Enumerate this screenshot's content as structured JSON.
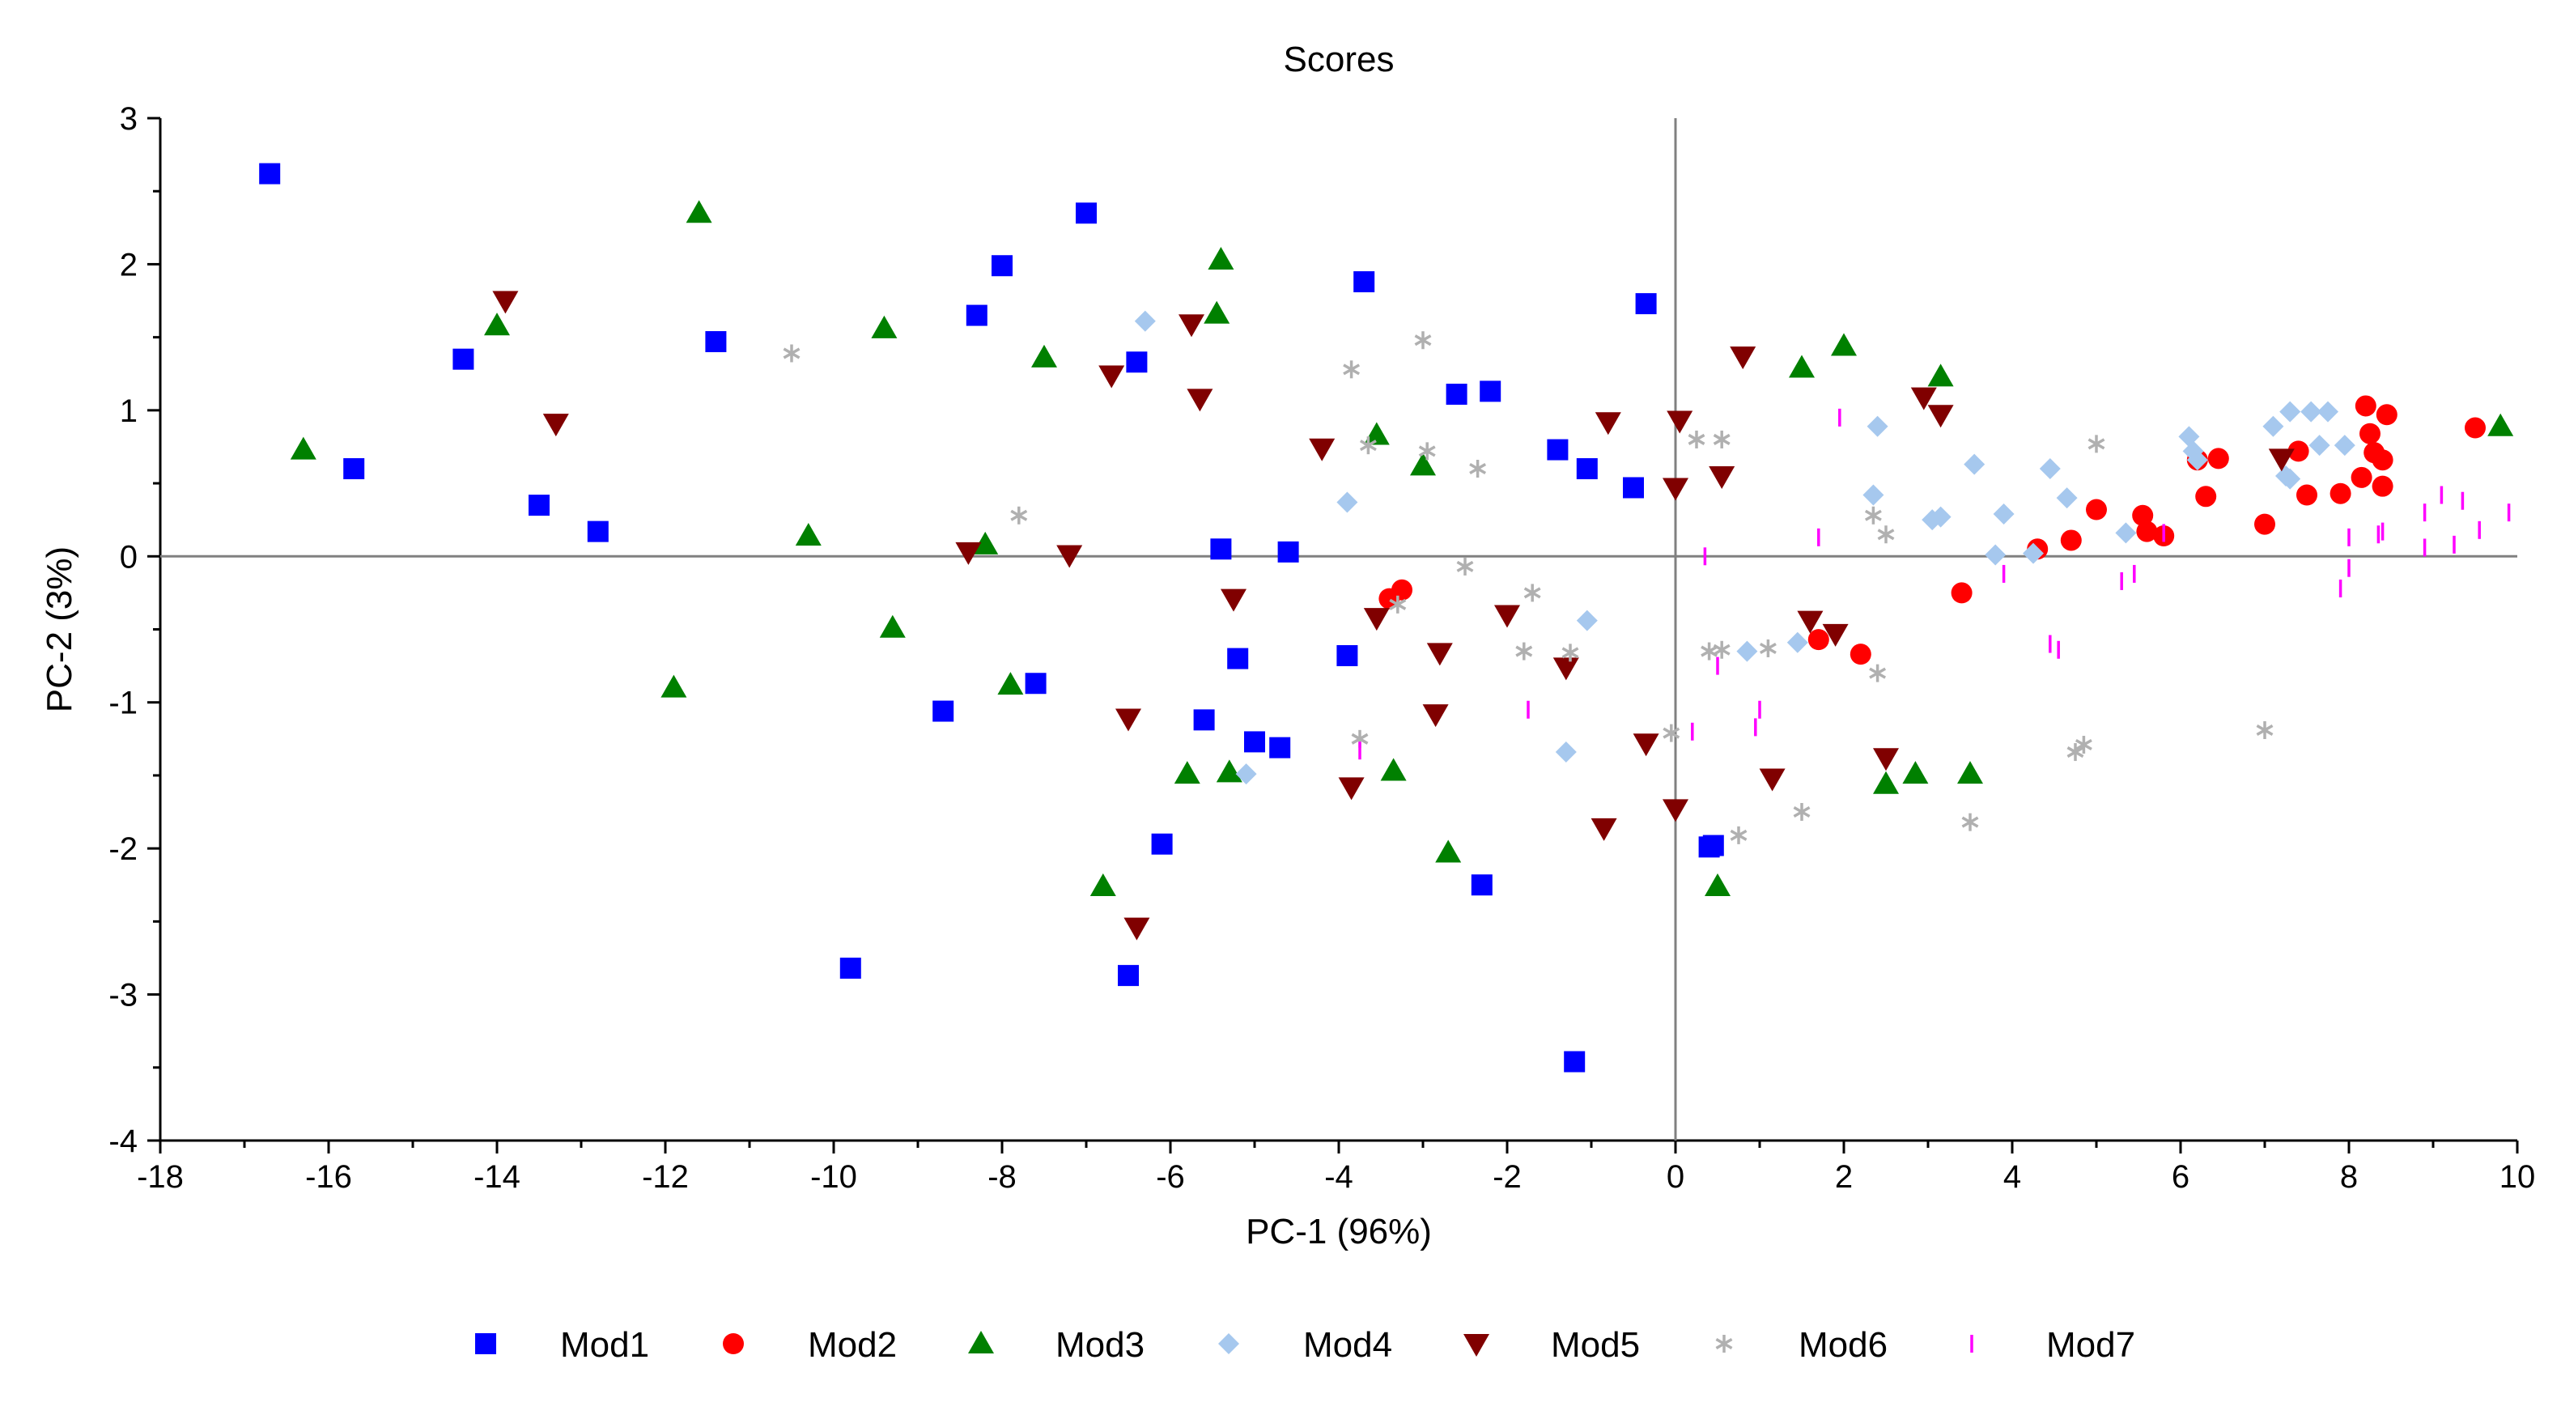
{
  "chart_data": {
    "type": "scatter",
    "title": "Scores",
    "xlabel": "PC-1 (96%)",
    "ylabel": "PC-2 (3%)",
    "xlim": [
      -18,
      10
    ],
    "ylim": [
      -4,
      3
    ],
    "xticks": [
      -18,
      -16,
      -14,
      -12,
      -10,
      -8,
      -6,
      -4,
      -2,
      0,
      2,
      4,
      6,
      8,
      10
    ],
    "yticks": [
      -4,
      -3,
      -2,
      -1,
      0,
      1,
      2,
      3
    ],
    "zero_lines": true,
    "legend_position": "bottom",
    "series": [
      {
        "name": "Mod1",
        "marker": "square",
        "color": "#0000ff",
        "points": [
          [
            -16.7,
            2.62
          ],
          [
            -15.7,
            0.6
          ],
          [
            -14.4,
            1.35
          ],
          [
            -13.5,
            0.35
          ],
          [
            -12.8,
            0.17
          ],
          [
            -11.4,
            1.47
          ],
          [
            -9.8,
            -2.82
          ],
          [
            -8.7,
            -1.06
          ],
          [
            -8.3,
            1.65
          ],
          [
            -8.0,
            1.99
          ],
          [
            -7.6,
            -0.87
          ],
          [
            -7.0,
            2.35
          ],
          [
            -6.5,
            -2.87
          ],
          [
            -6.4,
            1.33
          ],
          [
            -6.1,
            -1.97
          ],
          [
            -5.6,
            -1.12
          ],
          [
            -5.4,
            0.05
          ],
          [
            -5.2,
            -0.7
          ],
          [
            -5.0,
            -1.27
          ],
          [
            -4.7,
            -1.31
          ],
          [
            -4.6,
            0.03
          ],
          [
            -3.9,
            -0.68
          ],
          [
            -3.7,
            1.88
          ],
          [
            -2.6,
            1.11
          ],
          [
            -2.3,
            -2.25
          ],
          [
            -2.2,
            1.13
          ],
          [
            -1.4,
            0.73
          ],
          [
            -1.2,
            -3.46
          ],
          [
            -1.05,
            0.6
          ],
          [
            -0.5,
            0.47
          ],
          [
            -0.35,
            1.73
          ],
          [
            0.4,
            -1.99
          ],
          [
            0.45,
            -1.98
          ]
        ]
      },
      {
        "name": "Mod2",
        "marker": "circle",
        "color": "#ff0000",
        "points": [
          [
            -3.4,
            -0.29
          ],
          [
            -3.25,
            -0.23
          ],
          [
            1.7,
            -0.57
          ],
          [
            2.2,
            -0.67
          ],
          [
            3.4,
            -0.25
          ],
          [
            4.3,
            0.05
          ],
          [
            4.7,
            0.11
          ],
          [
            5.0,
            0.32
          ],
          [
            5.55,
            0.28
          ],
          [
            5.6,
            0.17
          ],
          [
            5.8,
            0.14
          ],
          [
            6.2,
            0.66
          ],
          [
            6.3,
            0.41
          ],
          [
            6.45,
            0.67
          ],
          [
            7.0,
            0.22
          ],
          [
            7.4,
            0.72
          ],
          [
            7.5,
            0.42
          ],
          [
            7.9,
            0.43
          ],
          [
            8.15,
            0.54
          ],
          [
            8.2,
            1.03
          ],
          [
            8.25,
            0.84
          ],
          [
            8.3,
            0.71
          ],
          [
            8.4,
            0.48
          ],
          [
            8.4,
            0.66
          ],
          [
            8.45,
            0.97
          ],
          [
            9.5,
            0.88
          ]
        ]
      },
      {
        "name": "Mod3",
        "marker": "triangle-up",
        "color": "#008000",
        "points": [
          [
            -16.3,
            0.73
          ],
          [
            -14.0,
            1.58
          ],
          [
            -11.9,
            -0.9
          ],
          [
            -11.6,
            2.35
          ],
          [
            -10.3,
            0.14
          ],
          [
            -9.4,
            1.56
          ],
          [
            -9.3,
            -0.49
          ],
          [
            -8.2,
            0.08
          ],
          [
            -7.9,
            -0.88
          ],
          [
            -7.5,
            1.36
          ],
          [
            -6.8,
            -2.26
          ],
          [
            -5.8,
            -1.49
          ],
          [
            -5.45,
            1.66
          ],
          [
            -5.4,
            2.03
          ],
          [
            -5.3,
            -1.48
          ],
          [
            -3.55,
            0.83
          ],
          [
            -3.35,
            -1.47
          ],
          [
            -3.0,
            0.62
          ],
          [
            -2.7,
            -2.03
          ],
          [
            0.5,
            -2.26
          ],
          [
            1.5,
            1.29
          ],
          [
            2.0,
            1.44
          ],
          [
            2.5,
            -1.56
          ],
          [
            2.85,
            -1.49
          ],
          [
            3.15,
            1.23
          ],
          [
            3.5,
            -1.49
          ],
          [
            9.8,
            0.89
          ]
        ]
      },
      {
        "name": "Mod4",
        "marker": "diamond",
        "color": "#a6c8ee",
        "points": [
          [
            -6.3,
            1.61
          ],
          [
            -5.1,
            -1.49
          ],
          [
            -3.9,
            0.37
          ],
          [
            -1.3,
            -1.34
          ],
          [
            -1.05,
            -0.44
          ],
          [
            0.85,
            -0.65
          ],
          [
            1.45,
            -0.59
          ],
          [
            2.35,
            0.42
          ],
          [
            2.4,
            0.89
          ],
          [
            3.05,
            0.25
          ],
          [
            3.15,
            0.27
          ],
          [
            3.55,
            0.63
          ],
          [
            3.8,
            0.01
          ],
          [
            3.9,
            0.29
          ],
          [
            4.25,
            0.02
          ],
          [
            4.45,
            0.6
          ],
          [
            4.65,
            0.4
          ],
          [
            5.35,
            0.16
          ],
          [
            6.1,
            0.82
          ],
          [
            6.15,
            0.72
          ],
          [
            6.2,
            0.66
          ],
          [
            7.1,
            0.89
          ],
          [
            7.25,
            0.55
          ],
          [
            7.3,
            0.99
          ],
          [
            7.3,
            0.53
          ],
          [
            7.55,
            0.99
          ],
          [
            7.65,
            0.76
          ],
          [
            7.75,
            0.99
          ],
          [
            7.95,
            0.76
          ]
        ]
      },
      {
        "name": "Mod5",
        "marker": "triangle-down",
        "color": "#800000",
        "points": [
          [
            -13.9,
            1.75
          ],
          [
            -13.3,
            0.91
          ],
          [
            -8.4,
            0.03
          ],
          [
            -7.2,
            0.01
          ],
          [
            -6.7,
            1.24
          ],
          [
            -6.5,
            -1.11
          ],
          [
            -6.4,
            -2.54
          ],
          [
            -5.75,
            1.59
          ],
          [
            -5.65,
            1.08
          ],
          [
            -5.25,
            -0.29
          ],
          [
            -4.2,
            0.74
          ],
          [
            -3.85,
            -1.58
          ],
          [
            -3.55,
            -0.42
          ],
          [
            -2.85,
            -1.08
          ],
          [
            -2.8,
            -0.66
          ],
          [
            -2.0,
            -0.4
          ],
          [
            -1.3,
            -0.76
          ],
          [
            -0.85,
            -1.86
          ],
          [
            -0.8,
            0.92
          ],
          [
            -0.35,
            -1.28
          ],
          [
            0.0,
            0.47
          ],
          [
            0.0,
            -1.73
          ],
          [
            0.05,
            0.93
          ],
          [
            0.55,
            0.55
          ],
          [
            0.8,
            1.37
          ],
          [
            1.15,
            -1.52
          ],
          [
            1.6,
            -0.44
          ],
          [
            1.9,
            -0.53
          ],
          [
            2.5,
            -1.38
          ],
          [
            2.95,
            1.09
          ],
          [
            3.15,
            0.97
          ],
          [
            7.2,
            0.67
          ]
        ]
      },
      {
        "name": "Mod6",
        "marker": "asterisk",
        "color": "#b0b0b0",
        "points": [
          [
            -10.5,
            1.39
          ],
          [
            -7.8,
            0.28
          ],
          [
            -3.85,
            1.28
          ],
          [
            -3.75,
            -1.25
          ],
          [
            -3.65,
            0.76
          ],
          [
            -3.3,
            -0.33
          ],
          [
            -3.0,
            1.48
          ],
          [
            -2.95,
            0.72
          ],
          [
            -2.5,
            -0.07
          ],
          [
            -2.35,
            0.6
          ],
          [
            -1.8,
            -0.65
          ],
          [
            -1.7,
            -0.25
          ],
          [
            -1.25,
            -0.66
          ],
          [
            0.25,
            0.8
          ],
          [
            -0.05,
            -1.21
          ],
          [
            0.4,
            -0.65
          ],
          [
            0.55,
            0.8
          ],
          [
            0.55,
            -0.64
          ],
          [
            0.75,
            -1.91
          ],
          [
            1.1,
            -0.63
          ],
          [
            1.5,
            -1.75
          ],
          [
            2.35,
            0.28
          ],
          [
            2.4,
            -0.8
          ],
          [
            2.5,
            0.15
          ],
          [
            3.5,
            -1.82
          ],
          [
            4.75,
            -1.34
          ],
          [
            4.85,
            -1.29
          ],
          [
            5.0,
            0.77
          ],
          [
            7.0,
            -1.19
          ]
        ]
      },
      {
        "name": "Mod7",
        "marker": "vline",
        "color": "#ff00ff",
        "points": [
          [
            -3.75,
            -1.33
          ],
          [
            -1.75,
            -1.05
          ],
          [
            0.35,
            0.0
          ],
          [
            0.2,
            -1.2
          ],
          [
            0.5,
            -0.75
          ],
          [
            0.95,
            -1.17
          ],
          [
            1.0,
            -1.05
          ],
          [
            1.7,
            0.13
          ],
          [
            1.95,
            0.95
          ],
          [
            3.9,
            -0.12
          ],
          [
            4.45,
            -0.6
          ],
          [
            4.55,
            -0.64
          ],
          [
            5.3,
            -0.17
          ],
          [
            5.45,
            -0.12
          ],
          [
            5.8,
            0.16
          ],
          [
            7.9,
            -0.22
          ],
          [
            8.0,
            0.13
          ],
          [
            8.0,
            -0.08
          ],
          [
            8.35,
            0.15
          ],
          [
            8.4,
            0.17
          ],
          [
            8.9,
            0.3
          ],
          [
            8.9,
            0.06
          ],
          [
            9.1,
            0.42
          ],
          [
            9.25,
            0.08
          ],
          [
            9.35,
            0.38
          ],
          [
            9.55,
            0.18
          ],
          [
            9.9,
            0.3
          ]
        ]
      }
    ]
  }
}
